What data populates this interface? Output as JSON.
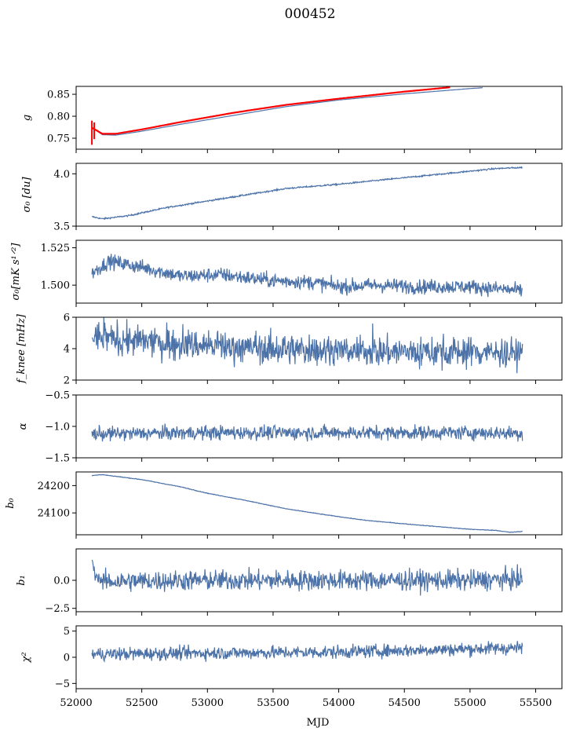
{
  "figure": {
    "title": "000452",
    "xlabel": "MJD"
  },
  "colors": {
    "series": "#4c72a8",
    "ref": "#ff0000",
    "axis": "#000000"
  },
  "chart_data": {
    "type": "line",
    "x_range": [
      52000,
      55700
    ],
    "x_ticks": [
      52000,
      52500,
      53000,
      53500,
      54000,
      54500,
      55000,
      55500
    ],
    "x_tick_labels": [
      "52000",
      "52500",
      "53000",
      "53500",
      "54000",
      "54500",
      "55000",
      "55500"
    ],
    "x_start": 52120,
    "x_end": 55400,
    "panels": [
      {
        "id": "g",
        "ylabel": "g",
        "ylim": [
          0.725,
          0.868
        ],
        "yticks": [
          0.75,
          0.8,
          0.85
        ],
        "ytick_labels": [
          "0.75",
          "0.80",
          "0.85"
        ],
        "series": [
          {
            "role": "measured",
            "color": "#4c72a8",
            "x": [
              52120,
              52200,
              52300,
              52500,
              52800,
              53200,
              53600,
              54000,
              54500,
              55000,
              55100
            ],
            "y": [
              0.775,
              0.758,
              0.757,
              0.766,
              0.782,
              0.802,
              0.822,
              0.837,
              0.851,
              0.863,
              0.865
            ]
          },
          {
            "role": "reference",
            "color": "#ff0000",
            "x": [
              52120,
              52200,
              52300,
              52500,
              52800,
              53200,
              53600,
              54000,
              54500,
              54850
            ],
            "y": [
              0.774,
              0.76,
              0.76,
              0.77,
              0.787,
              0.808,
              0.826,
              0.84,
              0.856,
              0.866
            ]
          }
        ]
      },
      {
        "id": "sigma0",
        "ylabel": "σ₀ [du]",
        "ylim": [
          3.5,
          4.1
        ],
        "yticks": [
          3.5,
          4.0
        ],
        "ytick_labels": [
          "3.5",
          "4.0"
        ],
        "series": [
          {
            "role": "measured",
            "color": "#4c72a8",
            "x": [
              52120,
              52200,
              52400,
              52700,
              53000,
              53300,
              53600,
              54000,
              54400,
              54800,
              55200,
              55400
            ],
            "y": [
              3.59,
              3.57,
              3.6,
              3.68,
              3.74,
              3.8,
              3.86,
              3.9,
              3.95,
              4.0,
              4.05,
              4.06
            ]
          }
        ],
        "noise": 0.005
      },
      {
        "id": "sigma0_mK",
        "ylabel": "σ₀[mK s¹ᐟ²]",
        "ylim": [
          1.488,
          1.53
        ],
        "yticks": [
          1.5,
          1.525
        ],
        "ytick_labels": [
          "1.500",
          "1.525"
        ],
        "series": [
          {
            "role": "measured",
            "color": "#4c72a8",
            "x": [
              52120,
              52250,
              52500,
              52800,
              53100,
              53500,
              53800,
              54000,
              54300,
              54600,
              55000,
              55300,
              55400
            ],
            "y": [
              1.508,
              1.516,
              1.512,
              1.506,
              1.507,
              1.503,
              1.502,
              1.499,
              1.5,
              1.499,
              1.499,
              1.497,
              1.496
            ]
          }
        ],
        "noise": 0.0035
      },
      {
        "id": "fknee",
        "ylabel": "f_knee [mHz]",
        "ylim": [
          2,
          6
        ],
        "yticks": [
          2,
          4,
          6
        ],
        "ytick_labels": [
          "2",
          "4",
          "6"
        ],
        "series": [
          {
            "role": "measured",
            "color": "#4c72a8",
            "x": [
              52120,
              52400,
              52800,
              53200,
              53600,
              54000,
              54500,
              55000,
              55400
            ],
            "y": [
              4.8,
              4.5,
              4.3,
              4.1,
              3.95,
              3.85,
              3.8,
              3.8,
              3.7
            ]
          }
        ],
        "noise": 0.7
      },
      {
        "id": "alpha",
        "ylabel": "α",
        "ylim": [
          -1.5,
          -0.5
        ],
        "yticks": [
          -1.5,
          -1.0,
          -0.5
        ],
        "ytick_labels": [
          "−1.5",
          "−1.0",
          "−0.5"
        ],
        "series": [
          {
            "role": "measured",
            "color": "#4c72a8",
            "x": [
              52120,
              53000,
              54000,
              55000,
              55400
            ],
            "y": [
              -1.12,
              -1.1,
              -1.1,
              -1.1,
              -1.11
            ]
          }
        ],
        "noise": 0.08
      },
      {
        "id": "b0",
        "ylabel": "b₀",
        "ylim": [
          24020,
          24250
        ],
        "yticks": [
          24100,
          24200
        ],
        "ytick_labels": [
          "24100",
          "24200"
        ],
        "series": [
          {
            "role": "measured",
            "color": "#4c72a8",
            "x": [
              52120,
              52200,
              52500,
              52800,
              53000,
              53300,
              53600,
              53900,
              54200,
              54500,
              54800,
              55000,
              55200,
              55300,
              55400
            ],
            "y": [
              24237,
              24240,
              24222,
              24195,
              24172,
              24145,
              24115,
              24093,
              24073,
              24060,
              24048,
              24040,
              24036,
              24029,
              24032
            ]
          }
        ],
        "noise": 0.8
      },
      {
        "id": "b1",
        "ylabel": "b₁",
        "ylim": [
          -2.8,
          2.8
        ],
        "yticks": [
          -2.5,
          0.0
        ],
        "ytick_labels": [
          "−2.5",
          "0.0"
        ],
        "series": [
          {
            "role": "measured",
            "color": "#4c72a8",
            "x": [
              52120,
              52140,
              52200,
              53000,
              54000,
              55000,
              55400
            ],
            "y": [
              2.0,
              0.6,
              -0.1,
              0.0,
              0.0,
              0.0,
              0.1
            ]
          }
        ],
        "noise": 0.65
      },
      {
        "id": "chi2",
        "ylabel": "χ²",
        "ylim": [
          -6,
          6
        ],
        "yticks": [
          -5,
          0,
          5
        ],
        "ytick_labels": [
          "−5",
          "0",
          "5"
        ],
        "series": [
          {
            "role": "measured",
            "color": "#4c72a8",
            "x": [
              52120,
              53000,
              54000,
              55000,
              55400
            ],
            "y": [
              0.6,
              0.8,
              1.0,
              1.6,
              1.8
            ]
          }
        ],
        "noise": 0.9
      }
    ]
  }
}
